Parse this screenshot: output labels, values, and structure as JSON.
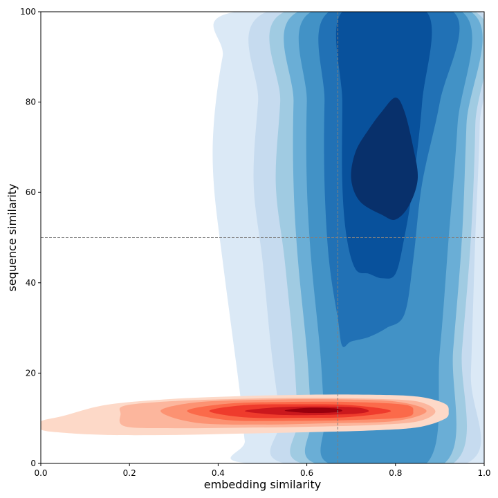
{
  "chart_data": {
    "type": "contour",
    "xlabel": "embedding similarity",
    "ylabel": "sequence similarity",
    "xlim": [
      0.0,
      1.0
    ],
    "ylim": [
      0,
      100
    ],
    "x_ticks": [
      "0.0",
      "0.2",
      "0.4",
      "0.6",
      "0.8",
      "1.0"
    ],
    "x_tick_values": [
      0.0,
      0.2,
      0.4,
      0.6,
      0.8,
      1.0
    ],
    "y_ticks": [
      "0",
      "20",
      "40",
      "60",
      "80",
      "100"
    ],
    "y_tick_values": [
      0,
      20,
      40,
      60,
      80,
      100
    ],
    "reference_lines": [
      {
        "orientation": "vertical",
        "x": 0.67,
        "style": "dashed",
        "color": "#808080"
      },
      {
        "orientation": "horizontal",
        "y": 50,
        "style": "dashed",
        "color": "#808080"
      }
    ],
    "series": [
      {
        "colormap": "Blues",
        "levels": [
          {
            "color": "#dbe9f6",
            "points": [
              [
                0.44,
                100
              ],
              [
                0.41,
                90
              ],
              [
                0.39,
                75
              ],
              [
                0.39,
                62
              ],
              [
                0.41,
                45
              ],
              [
                0.43,
                30
              ],
              [
                0.45,
                15
              ],
              [
                0.46,
                5
              ],
              [
                0.47,
                0
              ],
              [
                1.0,
                0
              ],
              [
                1.0,
                100
              ]
            ]
          },
          {
            "color": "#c6dbef",
            "points": [
              [
                0.51,
                100
              ],
              [
                0.49,
                80
              ],
              [
                0.48,
                62
              ],
              [
                0.5,
                45
              ],
              [
                0.52,
                25
              ],
              [
                0.54,
                10
              ],
              [
                0.55,
                0
              ],
              [
                0.96,
                0
              ],
              [
                0.97,
                20
              ],
              [
                0.98,
                50
              ],
              [
                0.99,
                75
              ],
              [
                0.99,
                100
              ]
            ]
          },
          {
            "color": "#a0cbe2",
            "points": [
              [
                0.55,
                100
              ],
              [
                0.54,
                80
              ],
              [
                0.53,
                62
              ],
              [
                0.55,
                45
              ],
              [
                0.57,
                25
              ],
              [
                0.58,
                10
              ],
              [
                0.59,
                0
              ],
              [
                0.93,
                0
              ],
              [
                0.95,
                25
              ],
              [
                0.97,
                50
              ],
              [
                0.98,
                75
              ],
              [
                0.98,
                100
              ]
            ]
          },
          {
            "color": "#6aaed6",
            "points": [
              [
                0.58,
                100
              ],
              [
                0.57,
                80
              ],
              [
                0.57,
                62
              ],
              [
                0.58,
                45
              ],
              [
                0.6,
                25
              ],
              [
                0.61,
                10
              ],
              [
                0.62,
                0
              ],
              [
                0.91,
                0
              ],
              [
                0.93,
                25
              ],
              [
                0.95,
                50
              ],
              [
                0.96,
                75
              ],
              [
                0.97,
                100
              ]
            ]
          },
          {
            "color": "#4292c6",
            "points": [
              [
                0.61,
                100
              ],
              [
                0.6,
                80
              ],
              [
                0.6,
                62
              ],
              [
                0.61,
                45
              ],
              [
                0.63,
                25
              ],
              [
                0.64,
                10
              ],
              [
                0.65,
                0
              ],
              [
                0.87,
                0
              ],
              [
                0.9,
                25
              ],
              [
                0.92,
                50
              ],
              [
                0.94,
                75
              ],
              [
                0.95,
                100
              ]
            ]
          },
          {
            "color": "#2171b5",
            "points": [
              [
                0.65,
                100
              ],
              [
                0.64,
                80
              ],
              [
                0.64,
                62
              ],
              [
                0.65,
                45
              ],
              [
                0.67,
                32
              ],
              [
                0.68,
                26
              ],
              [
                0.7,
                27
              ],
              [
                0.74,
                28
              ],
              [
                0.78,
                30
              ],
              [
                0.82,
                33
              ],
              [
                0.84,
                45
              ],
              [
                0.86,
                62
              ],
              [
                0.9,
                80
              ],
              [
                0.93,
                100
              ]
            ]
          },
          {
            "color": "#08519c",
            "points": [
              [
                0.68,
                100
              ],
              [
                0.68,
                80
              ],
              [
                0.68,
                62
              ],
              [
                0.69,
                50
              ],
              [
                0.71,
                43
              ],
              [
                0.74,
                42
              ],
              [
                0.77,
                41
              ],
              [
                0.8,
                42
              ],
              [
                0.82,
                50
              ],
              [
                0.84,
                62
              ],
              [
                0.86,
                80
              ],
              [
                0.87,
                100
              ]
            ]
          },
          {
            "color": "#08306b",
            "points": [
              [
                0.7,
                63
              ],
              [
                0.71,
                69
              ],
              [
                0.74,
                74
              ],
              [
                0.77,
                78
              ],
              [
                0.8,
                81
              ],
              [
                0.82,
                78
              ],
              [
                0.84,
                70
              ],
              [
                0.85,
                63
              ],
              [
                0.83,
                57
              ],
              [
                0.8,
                54
              ],
              [
                0.77,
                55
              ],
              [
                0.72,
                58
              ]
            ]
          }
        ]
      },
      {
        "colormap": "Reds",
        "levels": [
          {
            "color": "#fdd9c8",
            "points": [
              [
                0.0,
                7.5
              ],
              [
                0.05,
                6.8
              ],
              [
                0.15,
                6.3
              ],
              [
                0.3,
                6.3
              ],
              [
                0.45,
                6.6
              ],
              [
                0.6,
                6.9
              ],
              [
                0.75,
                7.3
              ],
              [
                0.85,
                8.0
              ],
              [
                0.91,
                9.8
              ],
              [
                0.92,
                11.5
              ],
              [
                0.91,
                13.3
              ],
              [
                0.85,
                14.8
              ],
              [
                0.75,
                15.2
              ],
              [
                0.6,
                15.2
              ],
              [
                0.45,
                14.9
              ],
              [
                0.3,
                14.3
              ],
              [
                0.15,
                13.0
              ],
              [
                0.05,
                10.5
              ],
              [
                0.0,
                9.3
              ]
            ]
          },
          {
            "color": "#fcb69d",
            "points": [
              [
                0.19,
                8.2
              ],
              [
                0.3,
                7.8
              ],
              [
                0.45,
                7.9
              ],
              [
                0.6,
                8.1
              ],
              [
                0.75,
                8.5
              ],
              [
                0.85,
                9.3
              ],
              [
                0.89,
                11.5
              ],
              [
                0.85,
                13.7
              ],
              [
                0.75,
                14.3
              ],
              [
                0.6,
                14.5
              ],
              [
                0.45,
                14.3
              ],
              [
                0.3,
                13.8
              ],
              [
                0.19,
                12.8
              ],
              [
                0.18,
                11.0
              ]
            ]
          },
          {
            "color": "#fc9272",
            "points": [
              [
                0.27,
                11.6
              ],
              [
                0.35,
                9.0
              ],
              [
                0.5,
                8.6
              ],
              [
                0.65,
                8.9
              ],
              [
                0.8,
                9.4
              ],
              [
                0.87,
                11.6
              ],
              [
                0.8,
                13.7
              ],
              [
                0.65,
                14.2
              ],
              [
                0.5,
                14.1
              ],
              [
                0.35,
                13.5
              ]
            ]
          },
          {
            "color": "#fb6a4a",
            "points": [
              [
                0.33,
                11.6
              ],
              [
                0.42,
                9.6
              ],
              [
                0.55,
                9.4
              ],
              [
                0.7,
                9.6
              ],
              [
                0.82,
                10.2
              ],
              [
                0.84,
                11.6
              ],
              [
                0.82,
                13.0
              ],
              [
                0.7,
                13.6
              ],
              [
                0.55,
                13.6
              ],
              [
                0.42,
                13.2
              ]
            ]
          },
          {
            "color": "#ef3b2c",
            "points": [
              [
                0.38,
                11.6
              ],
              [
                0.46,
                10.2
              ],
              [
                0.58,
                10.1
              ],
              [
                0.7,
                10.3
              ],
              [
                0.79,
                11.6
              ],
              [
                0.7,
                12.9
              ],
              [
                0.58,
                13.1
              ],
              [
                0.46,
                12.9
              ]
            ]
          },
          {
            "color": "#cb181d",
            "points": [
              [
                0.46,
                11.6
              ],
              [
                0.53,
                10.8
              ],
              [
                0.62,
                10.7
              ],
              [
                0.71,
                11.0
              ],
              [
                0.74,
                11.6
              ],
              [
                0.71,
                12.4
              ],
              [
                0.62,
                12.6
              ],
              [
                0.53,
                12.4
              ]
            ]
          },
          {
            "color": "#99000d",
            "points": [
              [
                0.55,
                11.7
              ],
              [
                0.6,
                11.2
              ],
              [
                0.66,
                11.3
              ],
              [
                0.68,
                11.7
              ],
              [
                0.66,
                12.2
              ],
              [
                0.6,
                12.3
              ]
            ]
          }
        ]
      }
    ]
  }
}
